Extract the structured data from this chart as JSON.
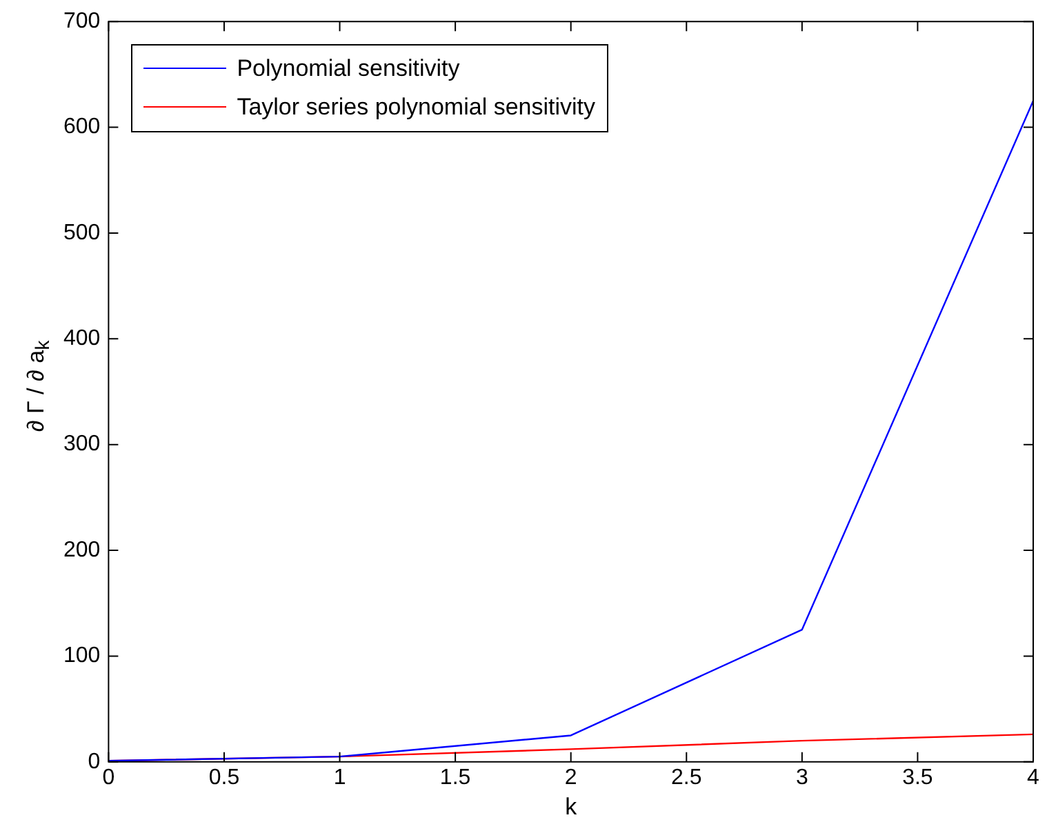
{
  "chart_data": {
    "type": "line",
    "xlabel": "k",
    "ylabel": "∂ Γ / ∂ a$_{k}$",
    "x": [
      0,
      1,
      2,
      3,
      4
    ],
    "series": [
      {
        "name": "Polynomial sensitivity",
        "color": "#0000ff",
        "values": [
          1,
          5,
          25,
          125,
          625
        ]
      },
      {
        "name": "Taylor series polynomial sensitivity",
        "color": "#ff0000",
        "values": [
          1,
          5,
          12,
          20,
          26
        ]
      }
    ],
    "xlim": [
      0,
      4
    ],
    "xticks": [
      0,
      0.5,
      1,
      1.5,
      2,
      2.5,
      3,
      3.5,
      4
    ],
    "ylim": [
      0,
      700
    ],
    "yticks": [
      0,
      100,
      200,
      300,
      400,
      500,
      600,
      700
    ],
    "grid": false,
    "legend": "top left",
    "marker": "none",
    "line_style": "solid"
  }
}
